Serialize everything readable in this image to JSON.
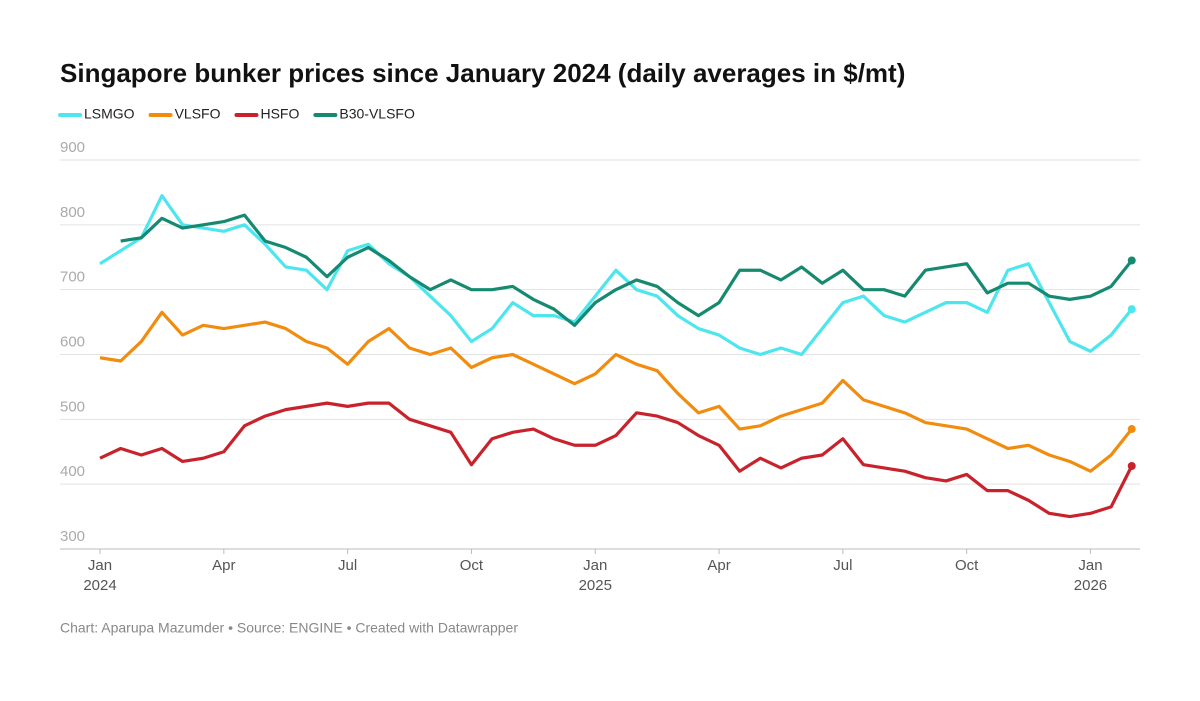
{
  "chart_data": {
    "type": "line",
    "title": "Singapore bunker prices since January 2024 (daily averages in $/mt)",
    "footer": "Chart: Aparupa Mazumder • Source: ENGINE • Created with Datawrapper",
    "x": [
      0,
      0.5,
      1,
      1.5,
      2,
      2.5,
      3,
      3.5,
      4,
      4.5,
      5,
      5.5,
      6,
      6.5,
      7,
      7.5,
      8,
      8.5,
      9,
      9.5,
      10,
      10.5,
      11,
      11.5,
      12,
      12.5,
      13,
      13.5,
      14,
      14.5,
      15,
      15.5,
      16,
      16.5,
      17,
      17.5,
      18,
      18.5,
      19,
      19.5,
      20,
      20.5,
      21,
      21.5,
      22,
      22.5,
      23,
      23.5,
      24,
      24.5,
      25
    ],
    "series": [
      {
        "name": "LSMGO",
        "color": "#4de6ee",
        "values": [
          740,
          760,
          780,
          845,
          800,
          795,
          790,
          800,
          770,
          735,
          730,
          700,
          760,
          770,
          740,
          720,
          690,
          660,
          620,
          640,
          680,
          660,
          660,
          650,
          690,
          730,
          700,
          690,
          660,
          640,
          630,
          610,
          600,
          610,
          600,
          640,
          680,
          690,
          660,
          650,
          665,
          680,
          680,
          665,
          730,
          740,
          680,
          620,
          605,
          630,
          670
        ]
      },
      {
        "name": "VLSFO",
        "color": "#f28c0f",
        "values": [
          595,
          590,
          620,
          665,
          630,
          645,
          640,
          645,
          650,
          640,
          620,
          610,
          585,
          620,
          640,
          610,
          600,
          610,
          580,
          595,
          600,
          585,
          570,
          555,
          570,
          600,
          585,
          575,
          540,
          510,
          520,
          485,
          490,
          505,
          515,
          525,
          560,
          530,
          520,
          510,
          495,
          490,
          485,
          470,
          455,
          460,
          445,
          435,
          420,
          445,
          485
        ]
      },
      {
        "name": "HSFO",
        "color": "#c8232c",
        "values": [
          440,
          455,
          445,
          455,
          435,
          440,
          450,
          490,
          505,
          515,
          520,
          525,
          520,
          525,
          525,
          500,
          490,
          480,
          430,
          470,
          480,
          485,
          470,
          460,
          460,
          475,
          510,
          505,
          495,
          475,
          460,
          420,
          440,
          425,
          440,
          445,
          470,
          430,
          425,
          420,
          410,
          405,
          415,
          390,
          390,
          375,
          355,
          350,
          355,
          365,
          428
        ]
      },
      {
        "name": "B30-VLSFO",
        "color": "#168a70",
        "values": [
          null,
          775,
          780,
          810,
          795,
          800,
          805,
          815,
          775,
          765,
          750,
          720,
          750,
          765,
          745,
          720,
          700,
          715,
          700,
          700,
          705,
          685,
          670,
          645,
          680,
          700,
          715,
          705,
          680,
          660,
          680,
          730,
          730,
          715,
          735,
          710,
          730,
          700,
          700,
          690,
          730,
          735,
          740,
          695,
          710,
          710,
          690,
          685,
          690,
          705,
          745
        ]
      }
    ],
    "xlim": [
      -0.97,
      25.2
    ],
    "xticks": [
      {
        "value": 0,
        "label": "Jan\n2024"
      },
      {
        "value": 3,
        "label": "Apr"
      },
      {
        "value": 6,
        "label": "Jul"
      },
      {
        "value": 9,
        "label": "Oct"
      },
      {
        "value": 12,
        "label": "Jan\n2025"
      },
      {
        "value": 15,
        "label": "Apr"
      },
      {
        "value": 18,
        "label": "Jul"
      },
      {
        "value": 21,
        "label": "Oct"
      },
      {
        "value": 24,
        "label": "Jan\n2026"
      }
    ],
    "ylim": [
      300,
      900
    ],
    "yticks": [
      300,
      400,
      500,
      600,
      700,
      800,
      900
    ],
    "grid": true
  }
}
